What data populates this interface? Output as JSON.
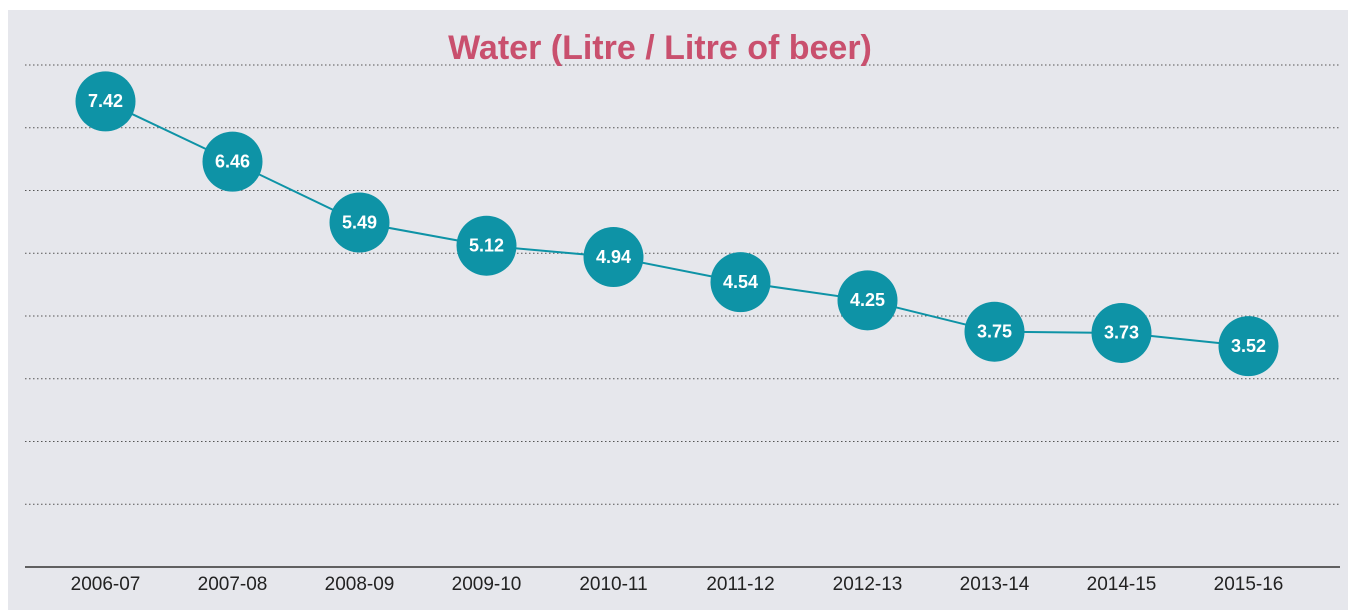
{
  "chart_data": {
    "type": "line",
    "title": "Water (Litre / Litre of beer)",
    "categories": [
      "2006-07",
      "2007-08",
      "2008-09",
      "2009-10",
      "2010-11",
      "2011-12",
      "2012-13",
      "2013-14",
      "2014-15",
      "2015-16"
    ],
    "values": [
      7.42,
      6.46,
      5.49,
      5.12,
      4.94,
      4.54,
      4.25,
      3.75,
      3.73,
      3.52
    ],
    "color": "#0e93a6",
    "ylim": [
      0,
      8
    ],
    "yticks": [
      1,
      2,
      3,
      4,
      5,
      6,
      7,
      8
    ],
    "grid": true
  }
}
